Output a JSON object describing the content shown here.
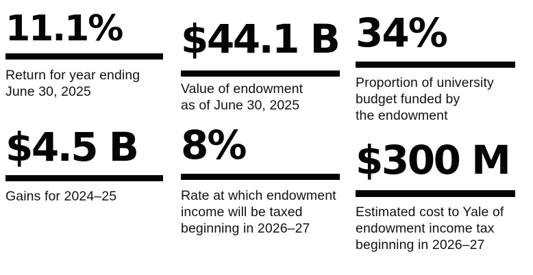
{
  "page": {
    "background_color": "#ffffff",
    "text_color": "#050505"
  },
  "stats": [
    {
      "value": "11.1%",
      "caption": "Return for year ending\nJune 30, 2025"
    },
    {
      "value": "$44.1 B",
      "caption": "Value of endowment\nas of June 30, 2025"
    },
    {
      "value": "34%",
      "caption": "Proportion of university\nbudget funded by\nthe endowment"
    },
    {
      "value": "$4.5 B",
      "caption": "Gains for 2024–25"
    },
    {
      "value": "8%",
      "caption": "Rate at which endowment\nincome will be taxed\nbeginning in 2026–27"
    },
    {
      "value": "$300 M",
      "caption": "Estimated cost to Yale of\nendowment income tax\nbeginning in 2026–27"
    }
  ],
  "chart_data": {
    "type": "table",
    "title": "",
    "items": [
      {
        "label": "Return for year ending June 30, 2025",
        "value": "11.1%",
        "numeric": 11.1,
        "unit": "percent"
      },
      {
        "label": "Value of endowment as of June 30, 2025",
        "value": "$44.1 B",
        "numeric": 44.1,
        "unit": "billion USD"
      },
      {
        "label": "Proportion of university budget funded by the endowment",
        "value": "34%",
        "numeric": 34,
        "unit": "percent"
      },
      {
        "label": "Gains for 2024–25",
        "value": "$4.5 B",
        "numeric": 4.5,
        "unit": "billion USD"
      },
      {
        "label": "Rate at which endowment income will be taxed beginning in 2026–27",
        "value": "8%",
        "numeric": 8,
        "unit": "percent"
      },
      {
        "label": "Estimated cost to Yale of endowment income tax beginning in 2026–27",
        "value": "$300 M",
        "numeric": 300,
        "unit": "million USD"
      }
    ],
    "layout": {
      "grid": "3x2",
      "rule_color": "#050505",
      "background": "#ffffff"
    }
  }
}
